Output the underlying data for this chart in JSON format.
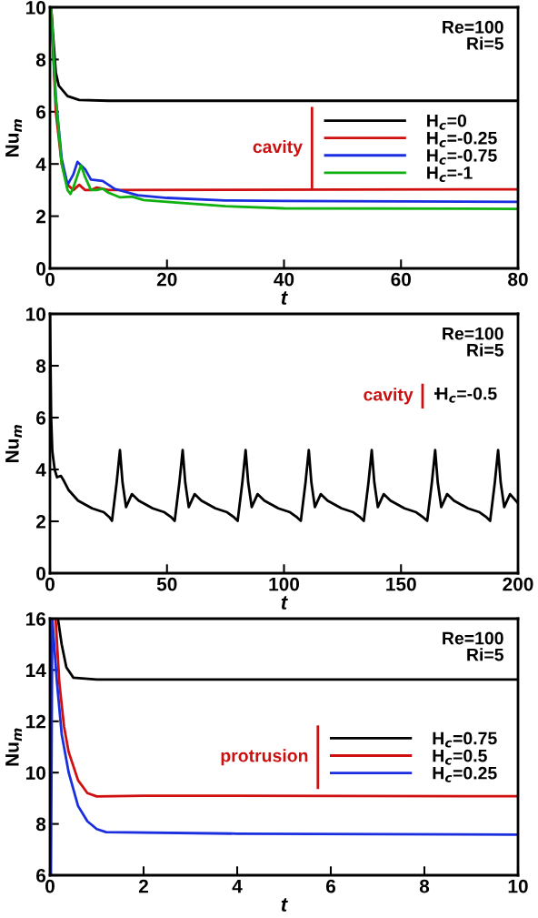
{
  "chart_data": [
    {
      "type": "line",
      "xlabel": "t",
      "ylabel": "Nu$_{m}$",
      "xlim": [
        0,
        80
      ],
      "ylim": [
        0,
        10
      ],
      "xticks": [
        0,
        20,
        40,
        60,
        80
      ],
      "yticks": [
        0,
        2,
        4,
        6,
        8,
        10
      ],
      "grid": false,
      "legend": "right",
      "legend_title": "cavity",
      "annotations": [
        "Re=100\nRi=5"
      ],
      "series": [
        {
          "name": "H$_{c}$=0",
          "color": "#000000",
          "x": [
            0.2,
            0.5,
            1,
            1.5,
            3,
            5,
            10,
            80
          ],
          "values": [
            10,
            9,
            7.5,
            7,
            6.6,
            6.45,
            6.42,
            6.42
          ]
        },
        {
          "name": "H$_{c}$=-0.25",
          "color": "#d01010",
          "x": [
            0.2,
            1,
            2,
            3,
            4,
            5,
            6,
            7,
            8,
            10,
            80
          ],
          "values": [
            10,
            6,
            4,
            3.2,
            3.0,
            3.2,
            3.0,
            3.0,
            3.1,
            3.0,
            3.03
          ]
        },
        {
          "name": "H$_{c}$=-0.75",
          "color": "#1a2ee0",
          "x": [
            0.15,
            1,
            2,
            3,
            4,
            4.7,
            6,
            7,
            9,
            11,
            15,
            20,
            30,
            40,
            80
          ],
          "values": [
            10,
            6.5,
            4.2,
            3.2,
            3.6,
            4.08,
            3.8,
            3.4,
            3.35,
            3.05,
            2.8,
            2.7,
            2.6,
            2.58,
            2.55
          ]
        },
        {
          "name": "H$_{c}$=-1",
          "color": "#10b010",
          "x": [
            0.2,
            1,
            2,
            3,
            3.5,
            4,
            5.3,
            6,
            7,
            8,
            9,
            10,
            12,
            14,
            16,
            20,
            30,
            40,
            80
          ],
          "values": [
            10,
            6.5,
            4,
            3,
            2.85,
            3.1,
            3.95,
            3.5,
            3.0,
            3.0,
            3.05,
            2.9,
            2.72,
            2.75,
            2.62,
            2.55,
            2.38,
            2.3,
            2.28
          ]
        }
      ]
    },
    {
      "type": "line",
      "xlabel": "t",
      "ylabel": "Nu$_{m}$",
      "xlim": [
        0,
        200
      ],
      "ylim": [
        0,
        10
      ],
      "xticks": [
        0,
        50,
        100,
        150,
        200
      ],
      "yticks": [
        0,
        2,
        4,
        6,
        8,
        10
      ],
      "grid": false,
      "legend": "top right",
      "legend_title": "cavity",
      "annotations": [
        "Re=100\nRi=5"
      ],
      "series": [
        {
          "name": "H$_{c}$=-0.5",
          "color": "#000000",
          "x": [
            0,
            0.5,
            1,
            2,
            3,
            4.7,
            6,
            8,
            12,
            18,
            23,
            25.5,
            26.5,
            28.5,
            29.9,
            31,
            32.5,
            35,
            37.9,
            43.9,
            48.9,
            51.9,
            53.3,
            55.3,
            56.7,
            57.8,
            59.3,
            61.8,
            64.7,
            70.7,
            75.7,
            78.7,
            80.2,
            82.2,
            83.6,
            84.7,
            86.2,
            88.7,
            91.6,
            97.6,
            102.6,
            105.6,
            107.2,
            109.2,
            110.6,
            111.7,
            113.2,
            115.7,
            118.6,
            124.6,
            129.6,
            132.6,
            134.1,
            136.1,
            137.5,
            138.6,
            140.1,
            142.6,
            145.5,
            151.5,
            156.5,
            159.5,
            161.2,
            163.2,
            164.6,
            165.7,
            167.2,
            169.7,
            172.6,
            178.6,
            183.6,
            186.6,
            188.1,
            190.1,
            191.5,
            192.6,
            194.1,
            196.6,
            200
          ],
          "values": [
            10,
            6,
            4.7,
            4,
            3.7,
            3.75,
            3.55,
            3.2,
            2.8,
            2.5,
            2.35,
            2.15,
            2.02,
            3.5,
            4.75,
            3.5,
            2.55,
            3.05,
            2.8,
            2.5,
            2.35,
            2.15,
            2.02,
            3.5,
            4.75,
            3.5,
            2.55,
            3.05,
            2.8,
            2.5,
            2.35,
            2.15,
            2.02,
            3.5,
            4.75,
            3.5,
            2.55,
            3.05,
            2.8,
            2.5,
            2.35,
            2.15,
            2.02,
            3.5,
            4.75,
            3.5,
            2.55,
            3.05,
            2.8,
            2.5,
            2.35,
            2.15,
            2.02,
            3.5,
            4.75,
            3.5,
            2.55,
            3.05,
            2.8,
            2.5,
            2.35,
            2.15,
            2.02,
            3.5,
            4.75,
            3.5,
            2.55,
            3.05,
            2.8,
            2.5,
            2.35,
            2.15,
            2.02,
            3.5,
            4.75,
            3.5,
            2.55,
            3.05,
            2.7
          ]
        }
      ]
    },
    {
      "type": "line",
      "xlabel": "t",
      "ylabel": "Nu$_{m}$",
      "xlim": [
        0,
        10
      ],
      "ylim": [
        6,
        16
      ],
      "xticks": [
        0,
        2,
        4,
        6,
        8,
        10
      ],
      "yticks": [
        6,
        8,
        10,
        12,
        14,
        16
      ],
      "grid": false,
      "legend": "right",
      "legend_title": "protrusion",
      "annotations": [
        "Re=100\nRi=5"
      ],
      "series": [
        {
          "name": "H$_{c}$=0.75",
          "color": "#000000",
          "x": [
            0.17,
            0.25,
            0.35,
            0.5,
            1,
            10
          ],
          "values": [
            16,
            15,
            14.1,
            13.7,
            13.63,
            13.63
          ]
        },
        {
          "name": "H$_{c}$=0.5",
          "color": "#d01010",
          "x": [
            0.12,
            0.2,
            0.3,
            0.4,
            0.6,
            0.8,
            1,
            2,
            10
          ],
          "values": [
            16,
            13.5,
            11.8,
            10.8,
            9.7,
            9.2,
            9.07,
            9.1,
            9.08
          ]
        },
        {
          "name": "H$_{c}$=0.25",
          "color": "#1a2ee0",
          "x": [
            0.02,
            0.05,
            0.15,
            0.25,
            0.4,
            0.6,
            0.8,
            1.0,
            1.2,
            4,
            10
          ],
          "values": [
            6,
            16,
            13.5,
            11.5,
            10,
            8.7,
            8.1,
            7.8,
            7.68,
            7.62,
            7.58
          ]
        }
      ]
    }
  ]
}
